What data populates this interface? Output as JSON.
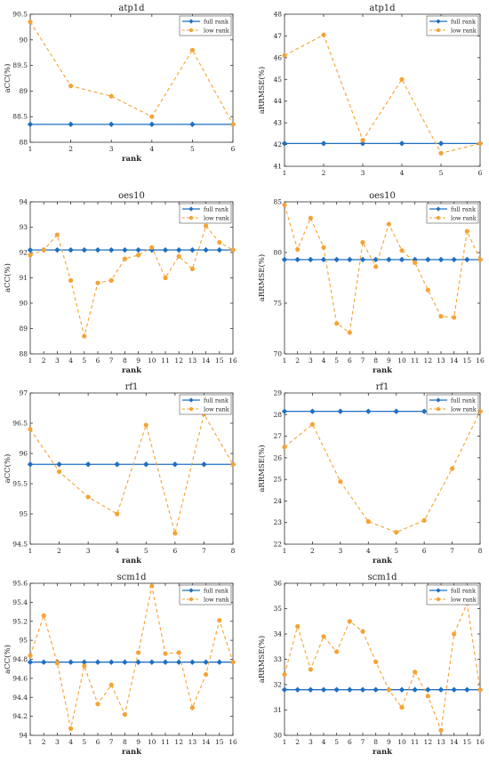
{
  "colors": {
    "full_rank": "#1f6fbf",
    "low_rank": "#f5a334",
    "axis": "#333333"
  },
  "legend": {
    "position": "top-right"
  },
  "chart_data": [
    {
      "type": "line",
      "title": "atp1d",
      "xlabel": "rank",
      "ylabel": "aCC(%)",
      "xlim": [
        1,
        6
      ],
      "ylim": [
        88,
        90.5
      ],
      "xticks": [
        1,
        2,
        3,
        4,
        5,
        6
      ],
      "yticks": [
        88,
        88.5,
        89,
        89.5,
        90,
        90.5
      ],
      "ytick_labels": [
        "88",
        "88.5",
        "89",
        "89.5",
        "90",
        "90.5"
      ],
      "x": [
        1,
        2,
        3,
        4,
        5,
        6
      ],
      "series": [
        {
          "name": "full rank",
          "values": [
            88.35,
            88.35,
            88.35,
            88.35,
            88.35,
            88.35
          ]
        },
        {
          "name": "low rank",
          "values": [
            90.35,
            89.1,
            88.9,
            88.5,
            89.8,
            88.35
          ]
        }
      ]
    },
    {
      "type": "line",
      "title": "atp1d",
      "xlabel": "",
      "ylabel": "aRRMSE(%)",
      "xlim": [
        1,
        6
      ],
      "ylim": [
        41,
        48
      ],
      "xticks": [
        1,
        2,
        3,
        4,
        5,
        6
      ],
      "yticks": [
        41,
        42,
        43,
        44,
        45,
        46,
        47,
        48
      ],
      "ytick_labels": [
        "41",
        "42",
        "43",
        "44",
        "45",
        "46",
        "47",
        "48"
      ],
      "x": [
        1,
        2,
        3,
        4,
        5,
        6
      ],
      "series": [
        {
          "name": "full rank",
          "values": [
            42.05,
            42.05,
            42.05,
            42.05,
            42.05,
            42.05
          ]
        },
        {
          "name": "low rank",
          "values": [
            46.1,
            47.05,
            42.2,
            45.0,
            41.6,
            42.05
          ]
        }
      ]
    },
    {
      "type": "line",
      "title": "oes10",
      "xlabel": "rank",
      "ylabel": "aCC(%)",
      "xlim": [
        1,
        16
      ],
      "ylim": [
        88,
        94
      ],
      "xticks": [
        1,
        2,
        3,
        4,
        5,
        6,
        7,
        8,
        9,
        10,
        11,
        12,
        13,
        14,
        15,
        16
      ],
      "yticks": [
        88,
        89,
        90,
        91,
        92,
        93,
        94
      ],
      "ytick_labels": [
        "88",
        "89",
        "90",
        "91",
        "92",
        "93",
        "94"
      ],
      "x": [
        1,
        2,
        3,
        4,
        5,
        6,
        7,
        8,
        9,
        10,
        11,
        12,
        13,
        14,
        15,
        16
      ],
      "series": [
        {
          "name": "full rank",
          "values": [
            92.1,
            92.1,
            92.1,
            92.1,
            92.1,
            92.1,
            92.1,
            92.1,
            92.1,
            92.1,
            92.1,
            92.1,
            92.1,
            92.1,
            92.1,
            92.1
          ]
        },
        {
          "name": "low rank",
          "values": [
            91.9,
            92.1,
            92.7,
            90.9,
            88.7,
            90.8,
            90.9,
            91.75,
            91.9,
            92.2,
            91.0,
            91.85,
            91.35,
            93.05,
            92.4,
            92.1
          ]
        }
      ]
    },
    {
      "type": "line",
      "title": "oes10",
      "xlabel": "rank",
      "ylabel": "aRRMSE(%)",
      "xlim": [
        1,
        16
      ],
      "ylim": [
        70,
        85
      ],
      "xticks": [
        1,
        2,
        3,
        4,
        5,
        6,
        7,
        8,
        9,
        10,
        11,
        12,
        13,
        14,
        15,
        16
      ],
      "yticks": [
        70,
        75,
        80,
        85
      ],
      "ytick_labels": [
        "70",
        "75",
        "80",
        "85"
      ],
      "x": [
        1,
        2,
        3,
        4,
        5,
        6,
        7,
        8,
        9,
        10,
        11,
        12,
        13,
        14,
        15,
        16
      ],
      "series": [
        {
          "name": "full rank",
          "values": [
            79.3,
            79.3,
            79.3,
            79.3,
            79.3,
            79.3,
            79.3,
            79.3,
            79.3,
            79.3,
            79.3,
            79.3,
            79.3,
            79.3,
            79.3,
            79.3
          ]
        },
        {
          "name": "low rank",
          "values": [
            84.7,
            80.3,
            83.4,
            80.5,
            73.0,
            72.1,
            81.0,
            78.6,
            82.8,
            80.2,
            79.0,
            76.3,
            73.7,
            73.6,
            82.1,
            79.3
          ]
        }
      ]
    },
    {
      "type": "line",
      "title": "rf1",
      "xlabel": "rank",
      "ylabel": "aCC(%)",
      "xlim": [
        1,
        8
      ],
      "ylim": [
        94.5,
        97
      ],
      "xticks": [
        1,
        2,
        3,
        4,
        5,
        6,
        7,
        8
      ],
      "yticks": [
        94.5,
        95,
        95.5,
        96,
        96.5,
        97
      ],
      "ytick_labels": [
        "94.5",
        "95",
        "95.5",
        "96",
        "96.5",
        "97"
      ],
      "x": [
        1,
        2,
        3,
        4,
        5,
        6,
        7,
        8
      ],
      "series": [
        {
          "name": "full rank",
          "values": [
            95.82,
            95.82,
            95.82,
            95.82,
            95.82,
            95.82,
            95.82,
            95.82
          ]
        },
        {
          "name": "low rank",
          "values": [
            96.4,
            95.7,
            95.28,
            95.0,
            96.47,
            94.68,
            96.65,
            95.82
          ]
        }
      ]
    },
    {
      "type": "line",
      "title": "rf1",
      "xlabel": "rank",
      "ylabel": "aRRMSE(%)",
      "xlim": [
        1,
        8
      ],
      "ylim": [
        22,
        29
      ],
      "xticks": [
        1,
        2,
        3,
        4,
        5,
        6,
        7,
        8
      ],
      "yticks": [
        22,
        23,
        24,
        25,
        26,
        27,
        28,
        29
      ],
      "ytick_labels": [
        "22",
        "23",
        "24",
        "25",
        "26",
        "27",
        "28",
        "29"
      ],
      "x": [
        1,
        2,
        3,
        4,
        5,
        6,
        7,
        8
      ],
      "series": [
        {
          "name": "full rank",
          "values": [
            28.15,
            28.15,
            28.15,
            28.15,
            28.15,
            28.15,
            28.15,
            28.15
          ]
        },
        {
          "name": "low rank",
          "values": [
            26.5,
            27.55,
            24.9,
            23.05,
            22.55,
            23.1,
            25.5,
            28.15
          ]
        }
      ]
    },
    {
      "type": "line",
      "title": "scm1d",
      "xlabel": "rank",
      "ylabel": "aCC(%)",
      "xlim": [
        1,
        16
      ],
      "ylim": [
        94,
        95.6
      ],
      "xticks": [
        1,
        2,
        3,
        4,
        5,
        6,
        7,
        8,
        9,
        10,
        11,
        12,
        13,
        14,
        15,
        16
      ],
      "yticks": [
        94,
        94.2,
        94.4,
        94.6,
        94.8,
        95,
        95.2,
        95.4,
        95.6
      ],
      "ytick_labels": [
        "94",
        "94.2",
        "94.4",
        "94.6",
        "94.8",
        "95",
        "95.2",
        "95.4",
        "95.6"
      ],
      "x": [
        1,
        2,
        3,
        4,
        5,
        6,
        7,
        8,
        9,
        10,
        11,
        12,
        13,
        14,
        15,
        16
      ],
      "series": [
        {
          "name": "full rank",
          "values": [
            94.77,
            94.77,
            94.77,
            94.77,
            94.77,
            94.77,
            94.77,
            94.77,
            94.77,
            94.77,
            94.77,
            94.77,
            94.77,
            94.77,
            94.77,
            94.77
          ]
        },
        {
          "name": "low rank",
          "values": [
            94.84,
            95.26,
            94.76,
            94.07,
            94.73,
            94.33,
            94.53,
            94.22,
            94.87,
            95.57,
            94.86,
            94.87,
            94.29,
            94.64,
            95.21,
            94.77
          ]
        }
      ]
    },
    {
      "type": "line",
      "title": "scm1d",
      "xlabel": "rank",
      "ylabel": "aRRMSE(%)",
      "xlim": [
        1,
        16
      ],
      "ylim": [
        30,
        36
      ],
      "xticks": [
        1,
        2,
        3,
        4,
        5,
        6,
        7,
        8,
        9,
        10,
        11,
        12,
        13,
        14,
        15,
        16
      ],
      "yticks": [
        30,
        31,
        32,
        33,
        34,
        35,
        36
      ],
      "ytick_labels": [
        "30",
        "31",
        "32",
        "33",
        "34",
        "35",
        "36"
      ],
      "x": [
        1,
        2,
        3,
        4,
        5,
        6,
        7,
        8,
        9,
        10,
        11,
        12,
        13,
        14,
        15,
        16
      ],
      "series": [
        {
          "name": "full rank",
          "values": [
            31.8,
            31.8,
            31.8,
            31.8,
            31.8,
            31.8,
            31.8,
            31.8,
            31.8,
            31.8,
            31.8,
            31.8,
            31.8,
            31.8,
            31.8,
            31.8
          ]
        },
        {
          "name": "low rank",
          "values": [
            32.4,
            34.3,
            32.6,
            33.9,
            33.3,
            34.5,
            34.1,
            32.9,
            31.8,
            31.1,
            32.5,
            31.55,
            30.2,
            34.0,
            35.2,
            31.8
          ]
        }
      ]
    }
  ]
}
